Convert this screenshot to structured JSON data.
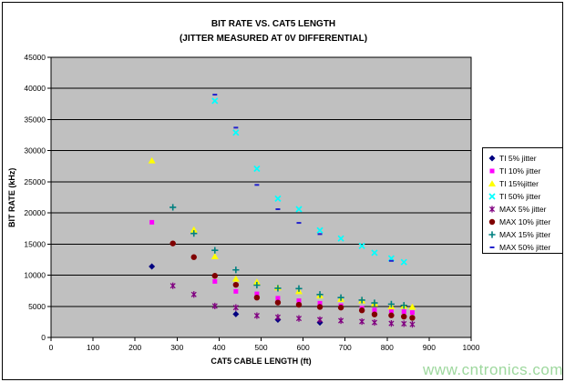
{
  "title": {
    "line1": "BIT RATE VS. CAT5 LENGTH",
    "line2": "(JITTER MEASURED AT 0V DIFFERENTIAL)"
  },
  "watermark": "www.cntronics.com",
  "chart_data": {
    "type": "scatter",
    "title": "BIT RATE VS. CAT5 LENGTH (JITTER MEASURED AT 0V DIFFERENTIAL)",
    "xlabel": "CAT5 CABLE LENGTH (ft)",
    "ylabel": "BIT RATE (kHz)",
    "xlim": [
      0,
      1000
    ],
    "xtick_step": 100,
    "ylim": [
      0,
      45000
    ],
    "ytick_step": 5000,
    "grid": "horizontal",
    "plot_bg": "#c0c0c0",
    "legend_position": "right",
    "series": [
      {
        "name": "TI 5% jitter",
        "marker": "diamond",
        "color": "#000080",
        "points": [
          [
            240,
            11400
          ],
          [
            440,
            3750
          ],
          [
            540,
            2850
          ],
          [
            640,
            2400
          ]
        ]
      },
      {
        "name": "TI 10% jitter",
        "marker": "square",
        "color": "#ff00ff",
        "points": [
          [
            240,
            18500
          ],
          [
            390,
            9000
          ],
          [
            440,
            7400
          ],
          [
            490,
            7000
          ],
          [
            540,
            6300
          ],
          [
            590,
            5900
          ],
          [
            640,
            5500
          ],
          [
            690,
            5100
          ],
          [
            740,
            4700
          ],
          [
            770,
            4400
          ],
          [
            810,
            4300
          ],
          [
            840,
            4150
          ],
          [
            860,
            4000
          ]
        ]
      },
      {
        "name": "TI 15%jitter",
        "marker": "triangle",
        "color": "#ffff00",
        "points": [
          [
            240,
            28400
          ],
          [
            340,
            17300
          ],
          [
            390,
            13000
          ],
          [
            440,
            9400
          ],
          [
            490,
            8900
          ],
          [
            540,
            8000
          ],
          [
            590,
            7400
          ],
          [
            640,
            6700
          ],
          [
            690,
            6150
          ],
          [
            740,
            5900
          ],
          [
            770,
            5450
          ],
          [
            810,
            4950
          ],
          [
            840,
            5050
          ],
          [
            860,
            4900
          ]
        ]
      },
      {
        "name": "TI 50% jitter",
        "marker": "x",
        "color": "#00ffff",
        "points": [
          [
            390,
            38000
          ],
          [
            440,
            32900
          ],
          [
            490,
            27100
          ],
          [
            540,
            22300
          ],
          [
            590,
            20600
          ],
          [
            640,
            17200
          ],
          [
            690,
            15900
          ],
          [
            740,
            14700
          ],
          [
            770,
            13600
          ],
          [
            810,
            12700
          ],
          [
            840,
            12100
          ]
        ]
      },
      {
        "name": "MAX 5% jitter",
        "marker": "star",
        "color": "#800080",
        "points": [
          [
            290,
            8300
          ],
          [
            340,
            6900
          ],
          [
            390,
            5050
          ],
          [
            440,
            4800
          ],
          [
            490,
            3500
          ],
          [
            540,
            3250
          ],
          [
            590,
            3050
          ],
          [
            640,
            2850
          ],
          [
            690,
            2700
          ],
          [
            740,
            2550
          ],
          [
            770,
            2400
          ],
          [
            810,
            2250
          ],
          [
            840,
            2200
          ],
          [
            860,
            2100
          ]
        ]
      },
      {
        "name": "MAX 10% jitter",
        "marker": "circle",
        "color": "#800000",
        "points": [
          [
            290,
            15100
          ],
          [
            340,
            12900
          ],
          [
            390,
            9900
          ],
          [
            440,
            8450
          ],
          [
            490,
            6400
          ],
          [
            540,
            5600
          ],
          [
            590,
            5250
          ],
          [
            640,
            4900
          ],
          [
            690,
            4800
          ],
          [
            740,
            4350
          ],
          [
            770,
            3700
          ],
          [
            810,
            3550
          ],
          [
            840,
            3350
          ],
          [
            860,
            3150
          ]
        ]
      },
      {
        "name": "MAX 15% jitter",
        "marker": "plus",
        "color": "#008080",
        "points": [
          [
            290,
            20900
          ],
          [
            340,
            16700
          ],
          [
            390,
            14000
          ],
          [
            440,
            10850
          ],
          [
            490,
            8400
          ],
          [
            540,
            7900
          ],
          [
            590,
            7850
          ],
          [
            640,
            6900
          ],
          [
            690,
            6400
          ],
          [
            740,
            6000
          ],
          [
            770,
            5550
          ],
          [
            810,
            5350
          ],
          [
            840,
            5150
          ]
        ]
      },
      {
        "name": "MAX 50% jitter",
        "marker": "dash",
        "color": "#2222cc",
        "points": [
          [
            390,
            39000
          ],
          [
            440,
            33700
          ],
          [
            490,
            24500
          ],
          [
            540,
            20600
          ],
          [
            590,
            18400
          ],
          [
            640,
            16600
          ],
          [
            810,
            12300
          ]
        ]
      }
    ]
  }
}
